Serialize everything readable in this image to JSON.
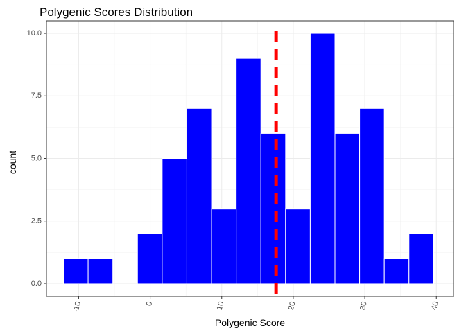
{
  "chart_data": {
    "type": "bar",
    "title": "Polygenic Scores Distribution",
    "xlabel": "Polygenic Score",
    "ylabel": "count",
    "xlim": [
      -14.5,
      42.4
    ],
    "ylim": [
      -0.5,
      10.5
    ],
    "x_ticks": [
      -10,
      0,
      10,
      20,
      30,
      40
    ],
    "x_tick_labels": [
      "-10",
      "0",
      "10",
      "20",
      "30",
      "40"
    ],
    "y_ticks": [
      0,
      2.5,
      5,
      7.5,
      10
    ],
    "y_tick_labels": [
      "0.0",
      "2.5",
      "5.0",
      "7.5",
      "10.0"
    ],
    "bin_width": 3.45,
    "bins": [
      {
        "center": -10.4,
        "count": 1
      },
      {
        "center": -6.95,
        "count": 1
      },
      {
        "center": -3.5,
        "count": 0
      },
      {
        "center": -0.05,
        "count": 2
      },
      {
        "center": 3.4,
        "count": 5
      },
      {
        "center": 6.85,
        "count": 7
      },
      {
        "center": 10.3,
        "count": 3
      },
      {
        "center": 13.75,
        "count": 9
      },
      {
        "center": 17.2,
        "count": 6
      },
      {
        "center": 20.65,
        "count": 3
      },
      {
        "center": 24.1,
        "count": 10
      },
      {
        "center": 27.55,
        "count": 6
      },
      {
        "center": 31.0,
        "count": 7
      },
      {
        "center": 34.45,
        "count": 1
      },
      {
        "center": 37.9,
        "count": 2
      }
    ],
    "vline": {
      "x": 17.6,
      "color": "#ff0000",
      "style": "dashed"
    },
    "bar_fill": "#0000ff",
    "bar_outline": "#ffffff",
    "grid": true,
    "legend": "none",
    "theme": "bw"
  }
}
